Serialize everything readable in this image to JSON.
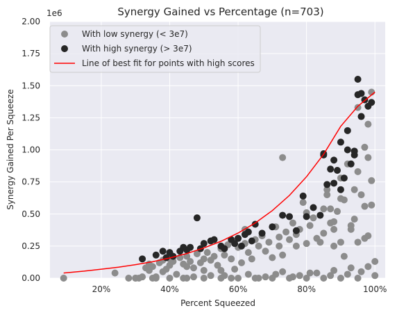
{
  "chart_data": {
    "type": "scatter",
    "title": "Synergy Gained vs Percentage (n=703)",
    "xlabel": "Percent Squeezed",
    "ylabel": "Synergy Gained Per Squeeze",
    "y_offset_label": "1e6",
    "xlim": [
      0.05,
      1.03
    ],
    "ylim": [
      0,
      2000000
    ],
    "x_ticks": [
      {
        "value": 0.2,
        "label": "20%"
      },
      {
        "value": 0.4,
        "label": "40%"
      },
      {
        "value": 0.6,
        "label": "60%"
      },
      {
        "value": 0.8,
        "label": "80%"
      },
      {
        "value": 1.0,
        "label": "100%"
      }
    ],
    "y_ticks": [
      {
        "value": 0,
        "label": "0.00"
      },
      {
        "value": 250000,
        "label": "0.25"
      },
      {
        "value": 500000,
        "label": "0.50"
      },
      {
        "value": 750000,
        "label": "0.75"
      },
      {
        "value": 1000000,
        "label": "1.00"
      },
      {
        "value": 1250000,
        "label": "1.25"
      },
      {
        "value": 1500000,
        "label": "1.50"
      },
      {
        "value": 1750000,
        "label": "1.75"
      },
      {
        "value": 2000000,
        "label": "2.00"
      }
    ],
    "grid": true,
    "legend_position": "top-left",
    "colors": {
      "background": "#eaeaf2",
      "grid": "#ffffff",
      "low": "#8c8c8c",
      "high": "#262626",
      "fit": "#ff0000"
    },
    "series": [
      {
        "name": "With low synergy (< 3e7)",
        "kind": "scatter",
        "color": "#8c8c8c",
        "x": [
          0.09,
          0.24,
          0.28,
          0.3,
          0.31,
          0.32,
          0.33,
          0.34,
          0.34,
          0.35,
          0.36,
          0.37,
          0.38,
          0.38,
          0.39,
          0.4,
          0.4,
          0.41,
          0.42,
          0.43,
          0.44,
          0.45,
          0.45,
          0.46,
          0.47,
          0.48,
          0.49,
          0.5,
          0.5,
          0.51,
          0.52,
          0.53,
          0.54,
          0.55,
          0.55,
          0.56,
          0.57,
          0.58,
          0.59,
          0.6,
          0.6,
          0.61,
          0.62,
          0.62,
          0.63,
          0.64,
          0.65,
          0.66,
          0.67,
          0.68,
          0.69,
          0.7,
          0.71,
          0.72,
          0.72,
          0.73,
          0.73,
          0.74,
          0.75,
          0.76,
          0.77,
          0.77,
          0.78,
          0.79,
          0.8,
          0.8,
          0.81,
          0.82,
          0.83,
          0.84,
          0.85,
          0.85,
          0.86,
          0.87,
          0.88,
          0.88,
          0.89,
          0.9,
          0.9,
          0.91,
          0.91,
          0.92,
          0.93,
          0.94,
          0.94,
          0.95,
          0.95,
          0.96,
          0.96,
          0.97,
          0.97,
          0.98,
          0.98,
          0.99,
          0.99,
          1.0,
          1.0,
          0.86,
          0.87,
          0.88,
          0.9,
          0.93,
          0.95,
          0.97,
          0.98,
          0.99,
          0.45,
          0.5,
          0.55,
          0.6,
          0.65,
          0.7,
          0.75,
          0.8,
          0.85,
          0.9,
          0.95,
          0.3,
          0.35,
          0.4,
          0.47,
          0.52,
          0.58,
          0.63,
          0.68,
          0.73,
          0.78,
          0.83,
          0.88,
          0.93,
          0.98,
          0.36,
          0.44,
          0.56,
          0.66,
          0.71,
          0.76,
          0.81,
          0.87,
          0.92,
          0.96
        ],
        "y": [
          0,
          40000,
          0,
          0,
          0,
          10000,
          80000,
          60000,
          110000,
          90000,
          0,
          120000,
          50000,
          140000,
          70000,
          100000,
          150000,
          130000,
          30000,
          160000,
          110000,
          90000,
          170000,
          130000,
          80000,
          190000,
          120000,
          150000,
          60000,
          200000,
          140000,
          170000,
          100000,
          230000,
          60000,
          180000,
          260000,
          150000,
          70000,
          240000,
          310000,
          120000,
          270000,
          380000,
          200000,
          150000,
          300000,
          250000,
          330000,
          210000,
          280000,
          160000,
          400000,
          320000,
          250000,
          940000,
          180000,
          360000,
          300000,
          430000,
          340000,
          250000,
          380000,
          590000,
          270000,
          510000,
          410000,
          470000,
          310000,
          280000,
          540000,
          350000,
          690000,
          430000,
          380000,
          250000,
          520000,
          620000,
          280000,
          610000,
          170000,
          890000,
          380000,
          690000,
          460000,
          1330000,
          280000,
          1260000,
          650000,
          1020000,
          560000,
          1200000,
          330000,
          760000,
          1450000,
          130000,
          20000,
          650000,
          540000,
          440000,
          780000,
          410000,
          830000,
          310000,
          940000,
          570000,
          0,
          0,
          0,
          0,
          0,
          0,
          0,
          0,
          0,
          0,
          0,
          0,
          0,
          0,
          10000,
          20000,
          0,
          30000,
          10000,
          50000,
          20000,
          40000,
          60000,
          80000,
          90000,
          10000,
          0,
          20000,
          0,
          30000,
          10000,
          40000,
          20000,
          30000,
          50000
        ],
        "visible": true
      },
      {
        "name": "With high synergy (> 3e7)",
        "kind": "scatter",
        "color": "#262626",
        "x": [
          0.32,
          0.36,
          0.38,
          0.39,
          0.4,
          0.41,
          0.43,
          0.44,
          0.45,
          0.46,
          0.48,
          0.49,
          0.5,
          0.52,
          0.53,
          0.55,
          0.56,
          0.58,
          0.59,
          0.6,
          0.61,
          0.62,
          0.63,
          0.64,
          0.65,
          0.67,
          0.7,
          0.73,
          0.75,
          0.77,
          0.79,
          0.8,
          0.82,
          0.84,
          0.85,
          0.86,
          0.87,
          0.88,
          0.89,
          0.9,
          0.91,
          0.92,
          0.93,
          0.94,
          0.95,
          0.95,
          0.96,
          0.96,
          0.97,
          0.98,
          0.99,
          0.85,
          0.88,
          0.9,
          0.92,
          0.94
        ],
        "y": [
          150000,
          180000,
          210000,
          160000,
          200000,
          170000,
          210000,
          240000,
          220000,
          240000,
          470000,
          230000,
          270000,
          290000,
          300000,
          250000,
          230000,
          300000,
          270000,
          310000,
          250000,
          340000,
          360000,
          290000,
          420000,
          350000,
          400000,
          490000,
          480000,
          370000,
          640000,
          480000,
          550000,
          490000,
          970000,
          730000,
          850000,
          740000,
          840000,
          690000,
          780000,
          1150000,
          890000,
          990000,
          1550000,
          1430000,
          1440000,
          1260000,
          1390000,
          1340000,
          1370000,
          960000,
          920000,
          1060000,
          1000000,
          960000
        ],
        "visible": true
      },
      {
        "name": "Line of best fit for points with high scores",
        "kind": "line",
        "color": "#ff0000",
        "x": [
          0.09,
          0.15,
          0.2,
          0.25,
          0.3,
          0.35,
          0.4,
          0.45,
          0.5,
          0.55,
          0.6,
          0.65,
          0.7,
          0.75,
          0.8,
          0.85,
          0.9,
          0.95,
          1.0
        ],
        "y": [
          40000,
          55000,
          70000,
          85000,
          105000,
          128000,
          157000,
          192000,
          235000,
          287000,
          352000,
          430000,
          527000,
          645000,
          790000,
          966000,
          1183000,
          1340000,
          1450000
        ],
        "visible": true
      }
    ]
  }
}
